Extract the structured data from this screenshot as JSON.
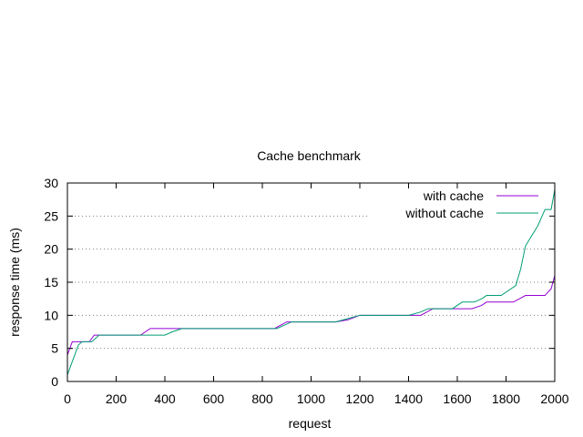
{
  "chart_data": {
    "type": "line",
    "title": "Cache benchmark",
    "xlabel": "request",
    "ylabel": "response time (ms)",
    "xlim": [
      0,
      2000
    ],
    "ylim": [
      0,
      30
    ],
    "xticks": [
      0,
      200,
      400,
      600,
      800,
      1000,
      1200,
      1400,
      1600,
      1800,
      2000
    ],
    "yticks": [
      0,
      5,
      10,
      15,
      20,
      25,
      30
    ],
    "grid": "horizontal dotted",
    "legend_position": "top-right",
    "series": [
      {
        "name": "with cache",
        "color": "#9400d3",
        "points": [
          [
            0,
            4
          ],
          [
            10,
            5
          ],
          [
            20,
            6
          ],
          [
            60,
            6
          ],
          [
            90,
            6
          ],
          [
            110,
            7
          ],
          [
            300,
            7
          ],
          [
            340,
            8
          ],
          [
            460,
            8
          ],
          [
            480,
            8
          ],
          [
            850,
            8
          ],
          [
            900,
            9
          ],
          [
            1100,
            9
          ],
          [
            1150,
            9.3
          ],
          [
            1200,
            10
          ],
          [
            1450,
            10
          ],
          [
            1500,
            11
          ],
          [
            1660,
            11
          ],
          [
            1700,
            11.5
          ],
          [
            1720,
            12
          ],
          [
            1830,
            12
          ],
          [
            1880,
            13
          ],
          [
            1960,
            13
          ],
          [
            1985,
            14
          ],
          [
            2000,
            16
          ]
        ]
      },
      {
        "name": "without cache",
        "color": "#009e73",
        "points": [
          [
            0,
            1
          ],
          [
            15,
            2.5
          ],
          [
            30,
            4
          ],
          [
            45,
            5.5
          ],
          [
            60,
            6
          ],
          [
            100,
            6
          ],
          [
            130,
            7
          ],
          [
            300,
            7
          ],
          [
            400,
            7
          ],
          [
            430,
            7.5
          ],
          [
            470,
            8
          ],
          [
            860,
            8
          ],
          [
            920,
            9
          ],
          [
            1100,
            9
          ],
          [
            1150,
            9.5
          ],
          [
            1200,
            10
          ],
          [
            1400,
            10
          ],
          [
            1450,
            10.5
          ],
          [
            1480,
            11
          ],
          [
            1580,
            11
          ],
          [
            1620,
            12
          ],
          [
            1670,
            12
          ],
          [
            1700,
            12.5
          ],
          [
            1720,
            13
          ],
          [
            1780,
            13
          ],
          [
            1840,
            14.5
          ],
          [
            1860,
            17
          ],
          [
            1880,
            20.5
          ],
          [
            1930,
            23.5
          ],
          [
            1960,
            26
          ],
          [
            1985,
            26
          ],
          [
            2000,
            29
          ]
        ]
      }
    ]
  }
}
